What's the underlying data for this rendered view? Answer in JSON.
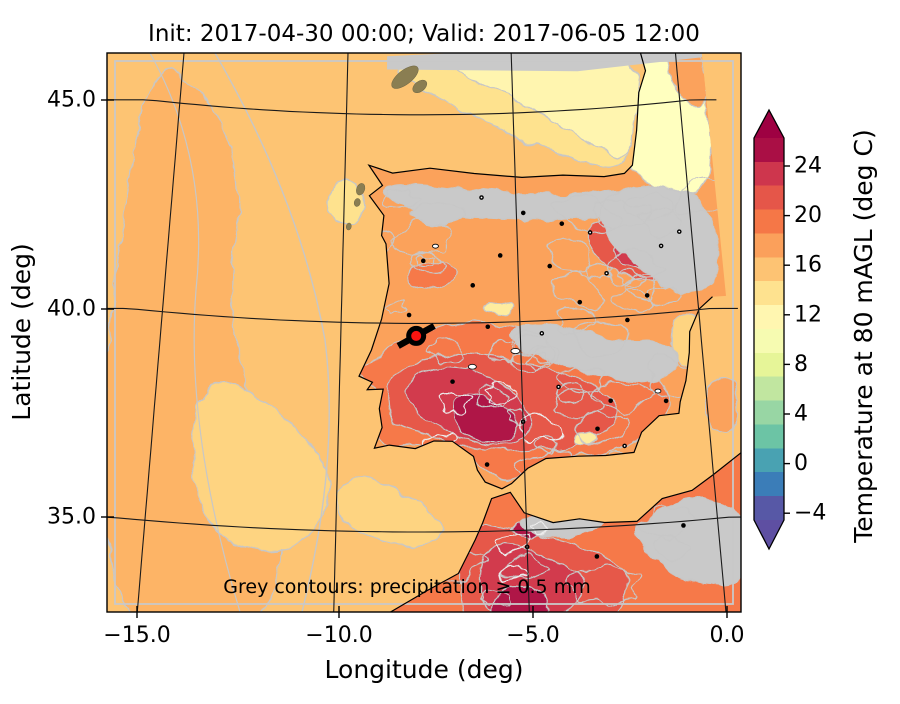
{
  "figure": {
    "title": "Init: 2017-04-30 00:00; Valid: 2017-06-05 12:00",
    "background": "#ffffff"
  },
  "axes": {
    "x": {
      "label": "Longitude (deg)",
      "ticks": [
        "−15.0",
        "−10.0",
        "−5.0",
        "0.0"
      ]
    },
    "y": {
      "label": "Latitude (deg)",
      "ticks": [
        "45.0",
        "40.0",
        "35.0"
      ]
    }
  },
  "colorbar": {
    "label": "Temperature at 80 mAGL (deg C)",
    "ticks": [
      "24",
      "20",
      "16",
      "12",
      "8",
      "4",
      "0",
      "−4"
    ],
    "extend": "both",
    "colormap": "Spectral_r",
    "colormap_anchors": [
      "#9e0142",
      "#d53e4f",
      "#f46d43",
      "#fdae61",
      "#fee08b",
      "#ffffbf",
      "#e6f598",
      "#abdda4",
      "#66c2a5",
      "#3288bd",
      "#5e4fa2"
    ]
  },
  "annotation": {
    "text": "Grey contours: precipitation ≥ 0.5 mm"
  },
  "marker": {
    "description": "black ring site marker",
    "lon": -7.9,
    "lat": 39.7
  },
  "colors": {
    "coastline": "#000000",
    "graticule": "#1a1a1a",
    "grey_contour": "#c7c7c7",
    "precip_grey_fill": "#c9c9c9",
    "olive_patch": "#8a7e52",
    "marker_center": "#fb1410",
    "annotation_text": "#4b4b4b"
  },
  "chart_data": {
    "type": "heatmap",
    "title": "Init: 2017-04-30 00:00; Valid: 2017-06-05 12:00",
    "xlabel": "Longitude (deg)",
    "ylabel": "Latitude (deg)",
    "xlim": [
      -15.8,
      0.4
    ],
    "ylim": [
      32.7,
      46.1
    ],
    "x_ticks": [
      -15.0,
      -10.0,
      -5.0,
      0.0
    ],
    "y_ticks": [
      35.0,
      40.0,
      45.0
    ],
    "field": "Temperature at 80 mAGL (deg C)",
    "colormap": "Spectral_r",
    "colorbar_ticks": [
      24,
      20,
      16,
      12,
      8,
      4,
      0,
      -4
    ],
    "colorbar_range_approx": [
      -6,
      26
    ],
    "colorbar_extend": "both",
    "overlay": "Grey contours: precipitation ≥ 0.5 mm",
    "projection": "Lambert-conformal style (converging meridians, curved parallels)",
    "site_marker": {
      "lon": -7.9,
      "lat": 39.7
    },
    "temperature_estimates_degC": {
      "atlantic_ocean_west": 15,
      "bay_of_biscay": 11,
      "france_land": 10,
      "iberia_north_coast": 17,
      "iberia_interior": 20,
      "iberia_southwest_max": 26,
      "morocco_interior_max": 26
    }
  }
}
